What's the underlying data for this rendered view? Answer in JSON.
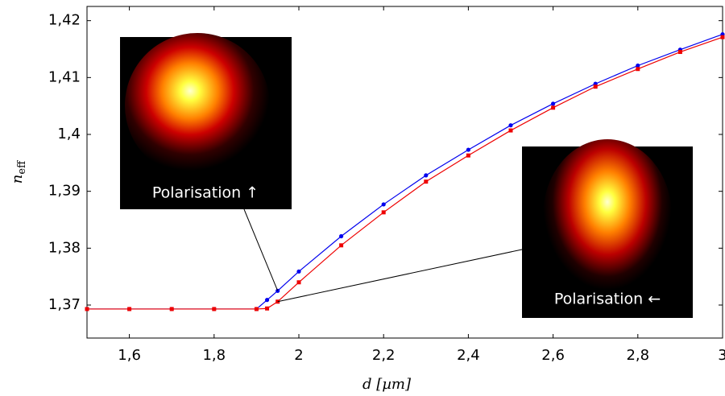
{
  "chart_data": {
    "type": "line",
    "xlabel": "d [µm]",
    "ylabel": "n",
    "ylabel_subscript": "eff",
    "x": [
      1.5,
      1.6,
      1.7,
      1.8,
      1.9,
      1.925,
      1.95,
      2.0,
      2.1,
      2.2,
      2.3,
      2.4,
      2.5,
      2.6,
      2.7,
      2.8,
      2.9,
      3.0
    ],
    "series": [
      {
        "color": "#0000ee",
        "marker": "circle",
        "values": [
          1.3693,
          1.3693,
          1.3693,
          1.3693,
          1.3693,
          1.3709,
          1.3725,
          1.3759,
          1.3821,
          1.3877,
          1.3928,
          1.3973,
          1.4016,
          1.4054,
          1.4089,
          1.4121,
          1.4149,
          1.4176
        ]
      },
      {
        "color": "#ee0000",
        "marker": "square",
        "values": [
          1.3693,
          1.3693,
          1.3693,
          1.3693,
          1.3693,
          1.3694,
          1.3706,
          1.374,
          1.3805,
          1.3863,
          1.3917,
          1.3963,
          1.4007,
          1.4047,
          1.4084,
          1.4115,
          1.4145,
          1.4171
        ]
      }
    ],
    "xlim": [
      1.5,
      3.0
    ],
    "ylim": [
      1.3642,
      1.4225
    ],
    "xticks": [
      {
        "value": 1.6,
        "label": "1,6"
      },
      {
        "value": 1.8,
        "label": "1,8"
      },
      2,
      {
        "value": 2.2,
        "label": "2,2"
      },
      {
        "value": 2.4,
        "label": "2,4"
      },
      {
        "value": 2.6,
        "label": "2,6"
      },
      {
        "value": 2.8,
        "label": "2,8"
      },
      3
    ],
    "yticks": [
      {
        "value": 1.37,
        "label": "1,37"
      },
      {
        "value": 1.38,
        "label": "1,38"
      },
      {
        "value": 1.39,
        "label": "1,39"
      },
      {
        "value": 1.4,
        "label": "1,4"
      },
      {
        "value": 1.41,
        "label": "1,41"
      },
      {
        "value": 1.42,
        "label": "1,42"
      }
    ],
    "annotations": [
      "Polarisation ↑",
      "Polarisation ←"
    ]
  }
}
